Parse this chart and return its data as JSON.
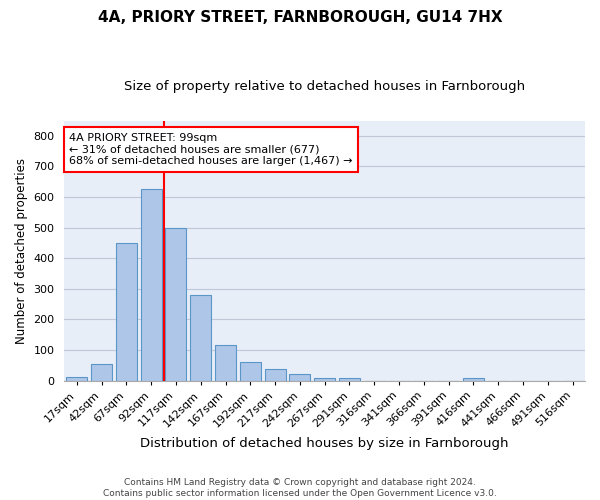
{
  "title": "4A, PRIORY STREET, FARNBOROUGH, GU14 7HX",
  "subtitle": "Size of property relative to detached houses in Farnborough",
  "xlabel": "Distribution of detached houses by size in Farnborough",
  "ylabel": "Number of detached properties",
  "categories": [
    "17sqm",
    "42sqm",
    "67sqm",
    "92sqm",
    "117sqm",
    "142sqm",
    "167sqm",
    "192sqm",
    "217sqm",
    "242sqm",
    "267sqm",
    "291sqm",
    "316sqm",
    "341sqm",
    "366sqm",
    "391sqm",
    "416sqm",
    "441sqm",
    "466sqm",
    "491sqm",
    "516sqm"
  ],
  "bar_values": [
    12,
    55,
    450,
    625,
    500,
    280,
    118,
    62,
    37,
    22,
    10,
    8,
    0,
    0,
    0,
    0,
    10,
    0,
    0,
    0,
    0
  ],
  "bar_color": "#aec6e8",
  "bar_edge_color": "#5a96c8",
  "vline_x": 3.5,
  "vline_color": "red",
  "annotation_text": "4A PRIORY STREET: 99sqm\n← 31% of detached houses are smaller (677)\n68% of semi-detached houses are larger (1,467) →",
  "annotation_box_color": "white",
  "annotation_box_edge": "red",
  "ylim": [
    0,
    850
  ],
  "yticks": [
    0,
    100,
    200,
    300,
    400,
    500,
    600,
    700,
    800
  ],
  "grid_color": "#c0c8d8",
  "background_color": "#e8eef8",
  "footer": "Contains HM Land Registry data © Crown copyright and database right 2024.\nContains public sector information licensed under the Open Government Licence v3.0.",
  "title_fontsize": 11,
  "subtitle_fontsize": 9.5,
  "xlabel_fontsize": 9.5,
  "ylabel_fontsize": 8.5,
  "tick_fontsize": 8,
  "annotation_fontsize": 8,
  "footer_fontsize": 6.5
}
